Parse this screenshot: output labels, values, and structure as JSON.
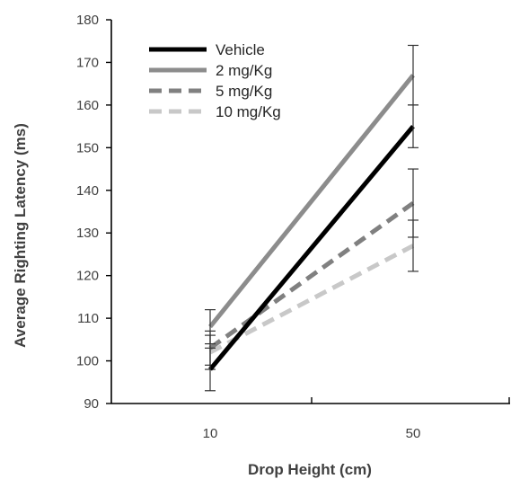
{
  "chart_data": {
    "type": "line",
    "xlabel": "Drop Height (cm)",
    "ylabel": "Average Righting Latency (ms)",
    "categories": [
      "10",
      "50"
    ],
    "ylim": [
      90,
      180
    ],
    "yticks": [
      90,
      100,
      110,
      120,
      130,
      140,
      150,
      160,
      170,
      180
    ],
    "grid": false,
    "legend_position": "top-left",
    "series": [
      {
        "name": "Vehicle",
        "values": [
          98,
          155
        ],
        "errors": [
          5,
          5
        ],
        "color": "#000000",
        "dash": "solid"
      },
      {
        "name": "2 mg/Kg",
        "values": [
          108,
          167
        ],
        "errors": [
          4,
          7
        ],
        "color": "#8c8c8c",
        "dash": "solid"
      },
      {
        "name": "5 mg/Kg",
        "values": [
          103,
          137
        ],
        "errors": [
          4,
          8
        ],
        "color": "#808080",
        "dash": "dashed"
      },
      {
        "name": "10 mg/Kg",
        "values": [
          102,
          127
        ],
        "errors": [
          4,
          6
        ],
        "color": "#c8c8c8",
        "dash": "dashed"
      }
    ]
  }
}
